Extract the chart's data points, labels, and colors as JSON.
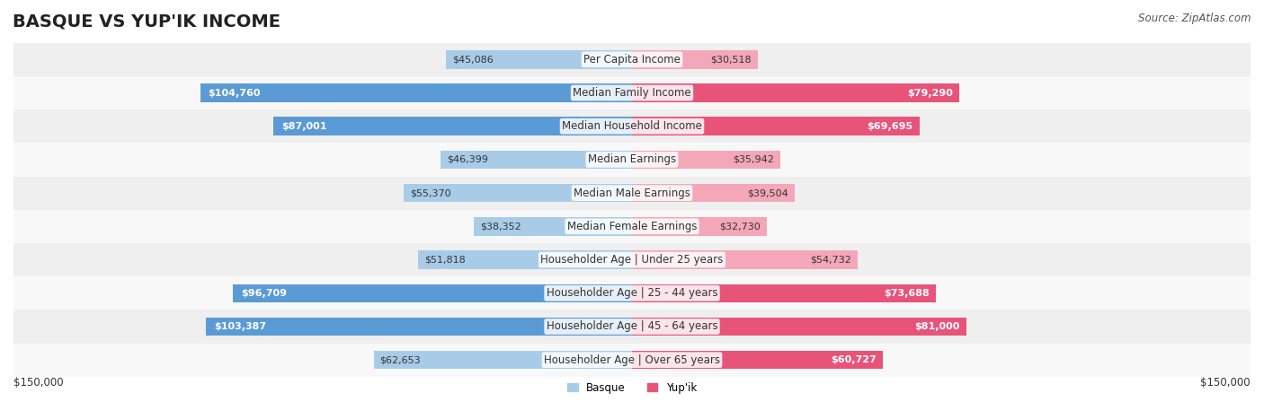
{
  "title": "BASQUE VS YUP'IK INCOME",
  "source": "Source: ZipAtlas.com",
  "categories": [
    "Per Capita Income",
    "Median Family Income",
    "Median Household Income",
    "Median Earnings",
    "Median Male Earnings",
    "Median Female Earnings",
    "Householder Age | Under 25 years",
    "Householder Age | 25 - 44 years",
    "Householder Age | 45 - 64 years",
    "Householder Age | Over 65 years"
  ],
  "basque_values": [
    45086,
    104760,
    87001,
    46399,
    55370,
    38352,
    51818,
    96709,
    103387,
    62653
  ],
  "yupik_values": [
    30518,
    79290,
    69695,
    35942,
    39504,
    32730,
    54732,
    73688,
    81000,
    60727
  ],
  "basque_color_light": "#a8cce8",
  "basque_color_dark": "#5b9bd5",
  "yupik_color_light": "#f4a7b9",
  "yupik_color_dark": "#e8537a",
  "max_value": 150000,
  "bg_color": "#ffffff",
  "row_bg_light": "#f0f0f0",
  "row_bg_white": "#ffffff",
  "xlabel_left": "$150,000",
  "xlabel_right": "$150,000",
  "legend_basque": "Basque",
  "legend_yupik": "Yup'ik",
  "title_fontsize": 14,
  "label_fontsize": 8.5,
  "value_fontsize": 8.0,
  "source_fontsize": 8.5
}
